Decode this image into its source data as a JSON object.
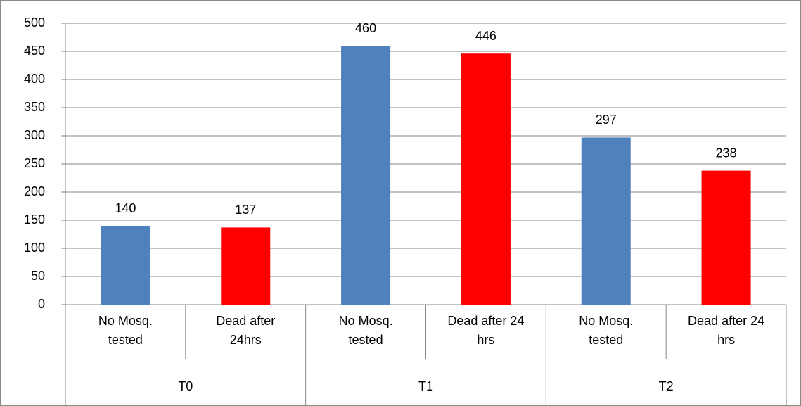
{
  "chart_data": {
    "type": "bar",
    "groups": [
      "T0",
      "T1",
      "T2"
    ],
    "categories": [
      "No Mosq. tested",
      "Dead after 24hrs",
      "No Mosq. tested",
      "Dead after 24 hrs",
      "No Mosq. tested",
      "Dead after 24 hrs"
    ],
    "values": [
      140,
      137,
      460,
      446,
      297,
      238
    ],
    "colors": [
      "#4f81bd",
      "#ff0000",
      "#4f81bd",
      "#ff0000",
      "#4f81bd",
      "#ff0000"
    ],
    "ylim": [
      0,
      500
    ],
    "yticks": [
      0,
      50,
      100,
      150,
      200,
      250,
      300,
      350,
      400,
      450,
      500
    ],
    "grid": true
  }
}
